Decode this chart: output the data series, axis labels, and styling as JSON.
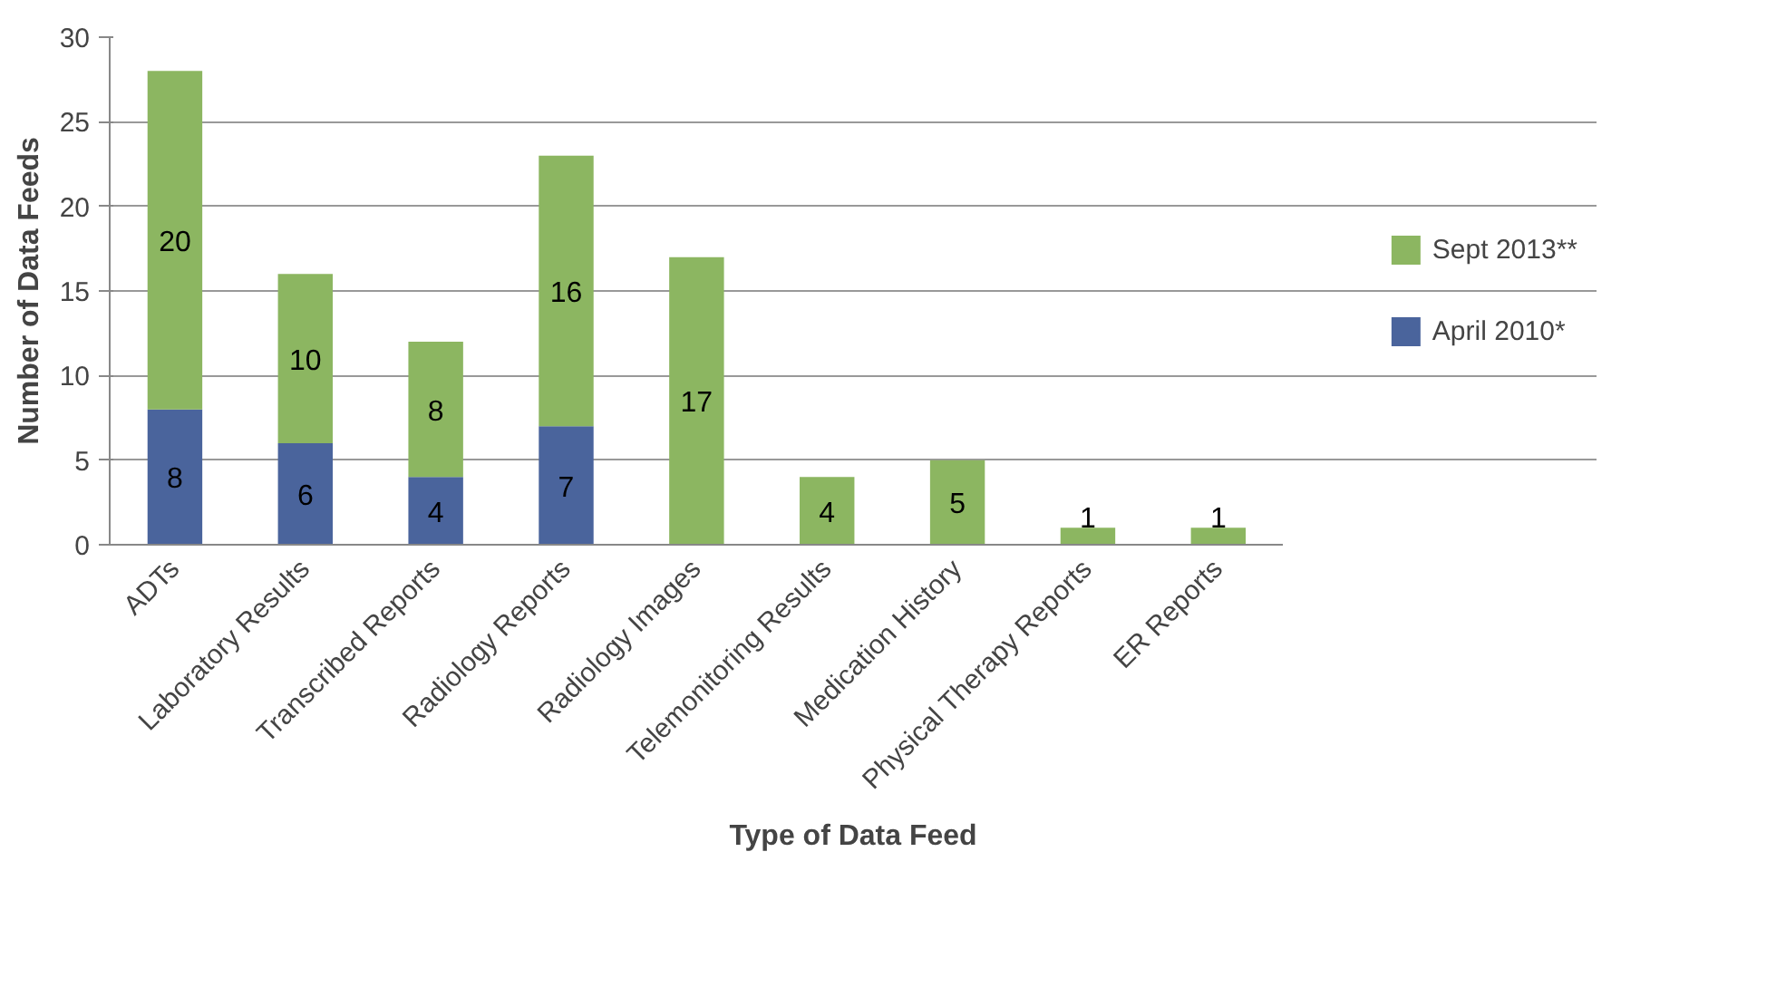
{
  "chart_data": {
    "type": "bar",
    "stacked": true,
    "xlabel": "Type of Data Feed",
    "ylabel": "Number of Data Feeds",
    "categories": [
      "ADTs",
      "Laboratory Results",
      "Transcribed Reports",
      "Radiology Reports",
      "Radiology Images",
      "Telemonitoring Results",
      "Medication History",
      "Physical Therapy Reports",
      "ER Reports"
    ],
    "series": [
      {
        "name": "April 2010*",
        "color": "#4a649c",
        "values": [
          8,
          6,
          4,
          7,
          null,
          null,
          null,
          null,
          null
        ]
      },
      {
        "name": "Sept 2013**",
        "color": "#8cb661",
        "values": [
          20,
          10,
          8,
          16,
          17,
          4,
          5,
          1,
          1
        ]
      }
    ],
    "ylim": [
      0,
      30
    ],
    "yticks": [
      0,
      5,
      10,
      15,
      20,
      25,
      30
    ],
    "grid": "y",
    "legend": "right",
    "data_labels": true
  }
}
